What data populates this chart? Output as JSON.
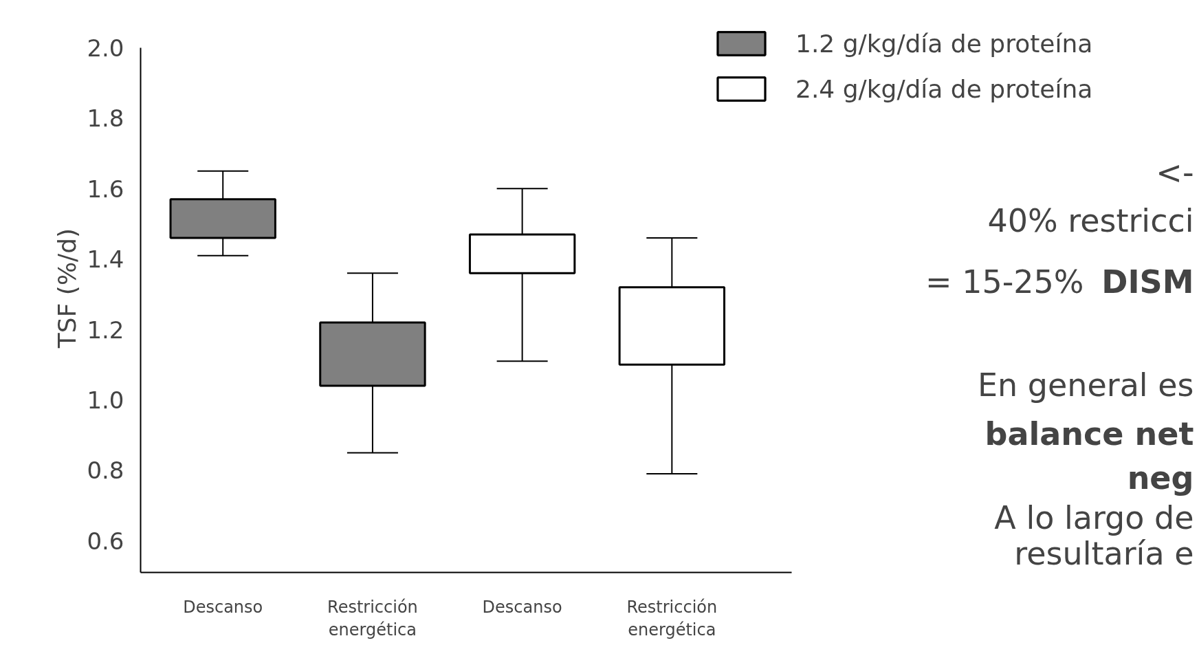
{
  "chart_data": {
    "type": "box",
    "ylabel": "TSF (%/d)",
    "categories": [
      "Descanso",
      "Restricción\nenergética",
      "Descanso",
      "Restricción\nenergética"
    ],
    "ylim": [
      0.51,
      2.0
    ],
    "yticks": [
      {
        "value": 0.6,
        "label": "0.6"
      },
      {
        "value": 0.8,
        "label": "0.8"
      },
      {
        "value": 1.0,
        "label": "1.0"
      },
      {
        "value": 1.2,
        "label": "1.2"
      },
      {
        "value": 1.4,
        "label": "1.4"
      },
      {
        "value": 1.6,
        "label": "1.6"
      },
      {
        "value": 1.8,
        "label": "1.8"
      },
      {
        "value": 2.0,
        "label": "2.0"
      }
    ],
    "grid": false,
    "legend": "top right",
    "series": [
      {
        "name": "1.2 g/kg/día de proteína",
        "color": "#808080",
        "boxes": [
          {
            "low": 1.41,
            "q1": 1.46,
            "q3": 1.57,
            "high": 1.65
          },
          {
            "low": 0.85,
            "q1": 1.04,
            "q3": 1.22,
            "high": 1.36
          },
          null,
          null
        ]
      },
      {
        "name": "2.4 g/kg/día de proteína",
        "color": "#ffffff",
        "boxes": [
          null,
          null,
          {
            "low": 1.11,
            "q1": 1.36,
            "q3": 1.47,
            "high": 1.6
          },
          {
            "low": 0.79,
            "q1": 1.1,
            "q3": 1.32,
            "high": 1.46
          }
        ]
      }
    ],
    "annotations": [
      "<-",
      "40% restricci",
      "= 15-25%",
      "DISM",
      "En general es",
      "balance net",
      "neg",
      "A lo largo de",
      "resultaría e"
    ]
  }
}
